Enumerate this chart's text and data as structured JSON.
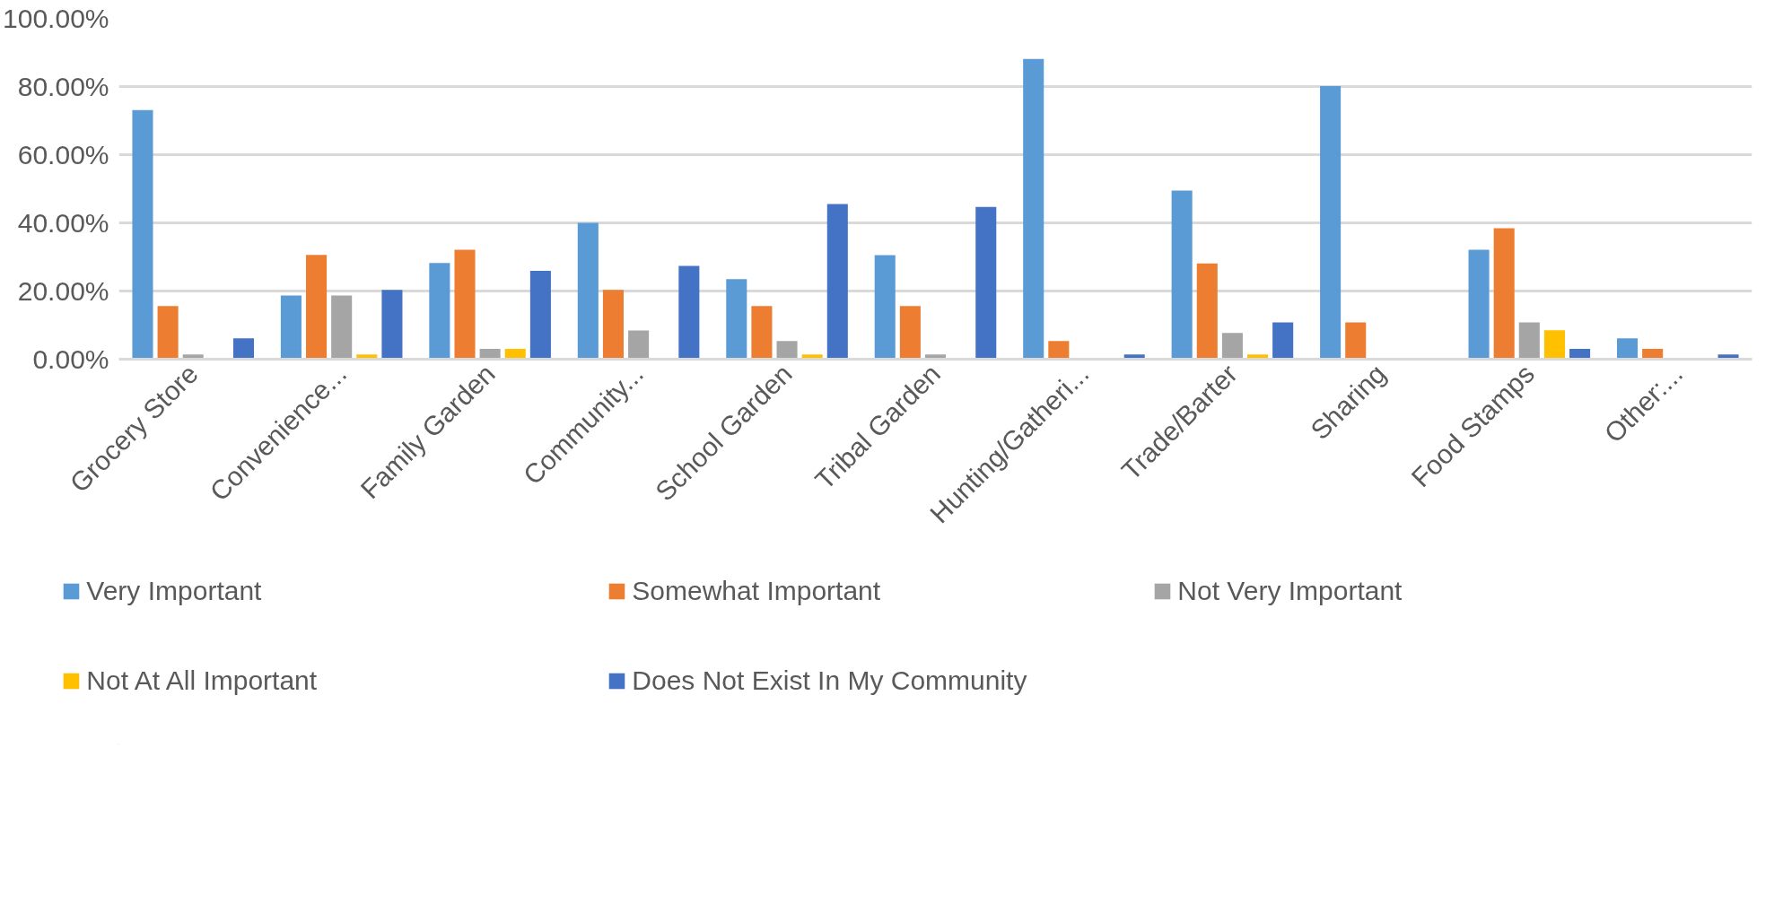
{
  "chart_data": {
    "type": "bar",
    "categories": [
      "Grocery Store",
      "Convenience...",
      "Family Garden",
      "Community...",
      "School Garden",
      "Tribal Garden",
      "Hunting/Gatheri...",
      "Trade/Barter",
      "Sharing",
      "Food Stamps",
      "Other:..."
    ],
    "series": [
      {
        "name": "Very Important",
        "color": "#5b9bd5",
        "values": [
          73.1,
          18.7,
          28.2,
          40.0,
          23.5,
          30.5,
          88.1,
          49.5,
          80.1,
          32.1,
          6.1
        ]
      },
      {
        "name": "Somewhat Important",
        "color": "#ed7d31",
        "values": [
          15.6,
          30.6,
          32.1,
          20.3,
          15.6,
          15.6,
          5.3,
          28.1,
          10.8,
          38.4,
          3.0
        ]
      },
      {
        "name": "Not Very Important",
        "color": "#a5a5a5",
        "values": [
          1.4,
          18.7,
          3.0,
          8.4,
          5.3,
          1.4,
          0,
          7.7,
          0,
          10.8,
          0
        ]
      },
      {
        "name": "Not At All Important",
        "color": "#ffc000",
        "values": [
          0,
          1.4,
          3.0,
          0,
          1.4,
          0,
          0,
          1.4,
          0,
          8.5,
          0
        ]
      },
      {
        "name": "Does Not Exist In My Community",
        "color": "#4472c4",
        "values": [
          6.1,
          20.3,
          25.9,
          27.4,
          45.5,
          44.7,
          1.4,
          10.8,
          0,
          3.0,
          1.4
        ]
      }
    ],
    "ylim": [
      0,
      100
    ],
    "yticks": [
      {
        "value": 0,
        "label": "0.00%"
      },
      {
        "value": 20,
        "label": "20.00%"
      },
      {
        "value": 40,
        "label": "40.00%"
      },
      {
        "value": 60,
        "label": "60.00%"
      },
      {
        "value": 80,
        "label": "80.00%"
      },
      {
        "value": 100,
        "label": "100.00%"
      }
    ],
    "grid": "y",
    "legend": "bottom"
  }
}
